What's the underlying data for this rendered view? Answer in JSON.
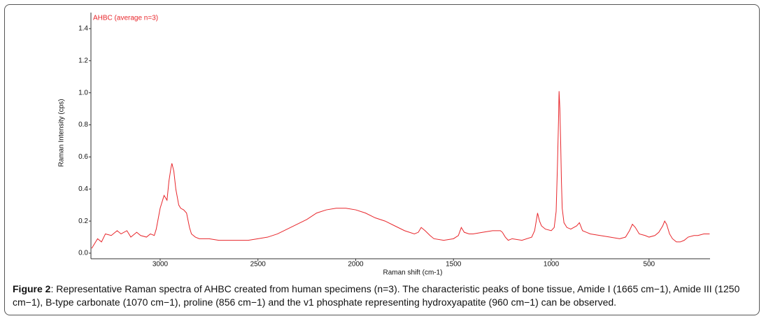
{
  "chart_data": {
    "type": "line",
    "x_label": "Raman shift (cm-1)",
    "y_label": "Raman Intensity (cps)",
    "x": [
      3350,
      3320,
      3300,
      3280,
      3250,
      3220,
      3200,
      3170,
      3150,
      3120,
      3100,
      3070,
      3050,
      3030,
      3020,
      3000,
      2980,
      2965,
      2955,
      2945,
      2940,
      2930,
      2920,
      2905,
      2895,
      2880,
      2865,
      2850,
      2840,
      2820,
      2800,
      2750,
      2700,
      2650,
      2600,
      2550,
      2500,
      2450,
      2400,
      2350,
      2300,
      2250,
      2200,
      2150,
      2100,
      2050,
      2000,
      1950,
      1900,
      1850,
      1800,
      1750,
      1700,
      1680,
      1665,
      1645,
      1620,
      1600,
      1550,
      1500,
      1475,
      1460,
      1445,
      1420,
      1400,
      1350,
      1300,
      1260,
      1250,
      1235,
      1220,
      1200,
      1150,
      1100,
      1085,
      1070,
      1060,
      1050,
      1030,
      1000,
      985,
      975,
      968,
      963,
      960,
      956,
      952,
      948,
      944,
      935,
      920,
      900,
      870,
      856,
      840,
      820,
      800,
      750,
      700,
      650,
      620,
      600,
      585,
      570,
      550,
      520,
      500,
      470,
      450,
      430,
      420,
      410,
      395,
      380,
      360,
      340,
      320,
      300,
      270,
      250,
      220,
      190
    ],
    "series": [
      {
        "name": "AHBC (average n=3)",
        "color": "#e8262b",
        "values": [
          0.03,
          0.09,
          0.07,
          0.12,
          0.11,
          0.14,
          0.12,
          0.14,
          0.1,
          0.13,
          0.11,
          0.1,
          0.12,
          0.11,
          0.15,
          0.28,
          0.36,
          0.33,
          0.45,
          0.53,
          0.56,
          0.51,
          0.4,
          0.3,
          0.28,
          0.27,
          0.25,
          0.16,
          0.12,
          0.1,
          0.09,
          0.09,
          0.08,
          0.08,
          0.08,
          0.08,
          0.09,
          0.1,
          0.12,
          0.15,
          0.18,
          0.21,
          0.25,
          0.27,
          0.28,
          0.28,
          0.27,
          0.25,
          0.22,
          0.2,
          0.17,
          0.14,
          0.12,
          0.13,
          0.16,
          0.14,
          0.11,
          0.09,
          0.08,
          0.09,
          0.11,
          0.16,
          0.13,
          0.12,
          0.12,
          0.13,
          0.14,
          0.14,
          0.13,
          0.1,
          0.08,
          0.09,
          0.08,
          0.1,
          0.14,
          0.25,
          0.2,
          0.17,
          0.15,
          0.14,
          0.16,
          0.26,
          0.56,
          0.82,
          1.01,
          0.9,
          0.7,
          0.45,
          0.28,
          0.19,
          0.16,
          0.15,
          0.17,
          0.19,
          0.14,
          0.13,
          0.12,
          0.11,
          0.1,
          0.09,
          0.1,
          0.14,
          0.18,
          0.16,
          0.12,
          0.11,
          0.1,
          0.11,
          0.13,
          0.17,
          0.2,
          0.18,
          0.12,
          0.09,
          0.07,
          0.07,
          0.08,
          0.1,
          0.11,
          0.11,
          0.12,
          0.12
        ]
      }
    ],
    "xlim": [
      3354,
      188
    ],
    "xticks": [
      3000,
      2500,
      2000,
      1500,
      1000,
      500
    ],
    "ylim": [
      -0.035,
      1.5
    ],
    "yticks": [
      {
        "value": 0,
        "label": "0.0"
      },
      0.2,
      0.4,
      0.6,
      0.8,
      {
        "value": 1,
        "label": "1.0"
      },
      1.2,
      1.4
    ],
    "grid": false
  },
  "caption": {
    "label": "Figure 2",
    "text": ":  Representative Raman spectra of AHBC created from human specimens (n=3). The characteristic peaks of bone tissue, Amide I (1665 cm−1), Amide III (1250 cm−1), B-type carbonate (1070 cm−1), proline (856 cm−1) and the v1 phosphate representing hydroxyapatite (960 cm−1) can be observed."
  }
}
